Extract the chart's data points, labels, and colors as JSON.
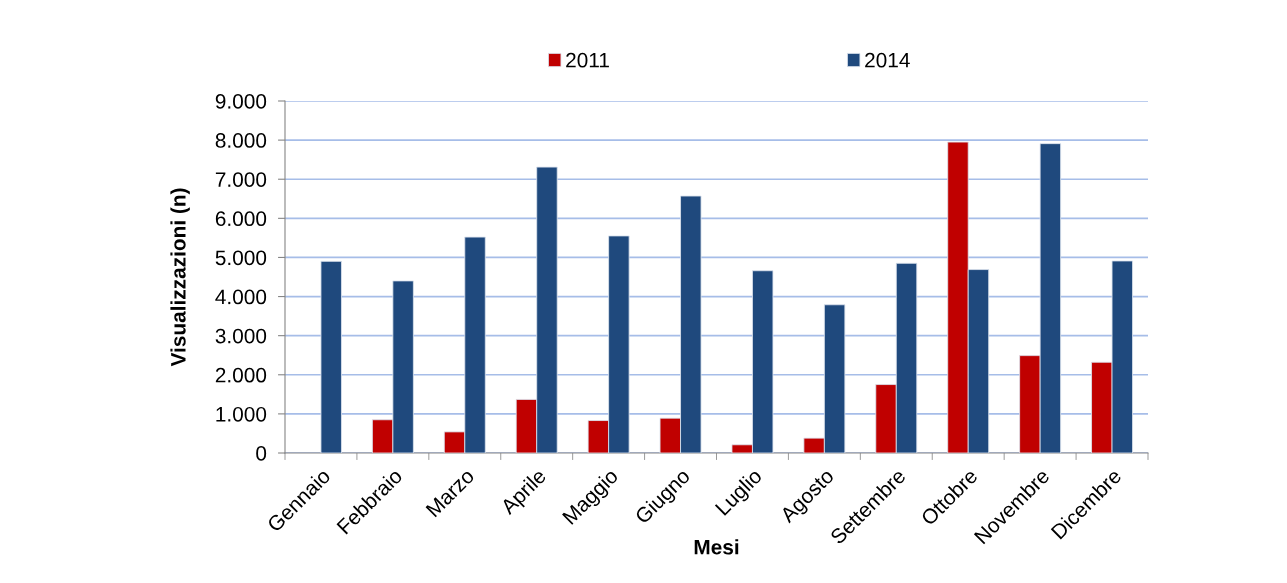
{
  "chart_data": {
    "type": "bar",
    "xlabel": "Mesi",
    "ylabel": "Visualizzazioni (n)",
    "categories": [
      "Gennaio",
      "Febbraio",
      "Marzo",
      "Aprile",
      "Maggio",
      "Giugno",
      "Luglio",
      "Agosto",
      "Settembre",
      "Ottobre",
      "Novembre",
      "Dicembre"
    ],
    "series": [
      {
        "name": "2011",
        "color": "#c00000",
        "values": [
          null,
          850,
          540,
          1370,
          830,
          890,
          210,
          380,
          1750,
          7950,
          2490,
          2320
        ]
      },
      {
        "name": "2014",
        "color": "#1f497d",
        "values": [
          4900,
          4400,
          5520,
          7310,
          5550,
          6570,
          4660,
          3790,
          4850,
          4690,
          7910,
          4910
        ]
      }
    ],
    "ylim": [
      0,
      9000
    ],
    "yticks": [
      0,
      {
        "value": 1000,
        "label": "1.000"
      },
      {
        "value": 2000,
        "label": "2.000"
      },
      {
        "value": 3000,
        "label": "3.000"
      },
      {
        "value": 4000,
        "label": "4.000"
      },
      {
        "value": 5000,
        "label": "5.000"
      },
      {
        "value": 6000,
        "label": "6.000"
      },
      {
        "value": 7000,
        "label": "7.000"
      },
      {
        "value": 8000,
        "label": "8.000"
      },
      {
        "value": 9000,
        "label": "9.000"
      }
    ],
    "grid": "y",
    "legend": "top"
  }
}
